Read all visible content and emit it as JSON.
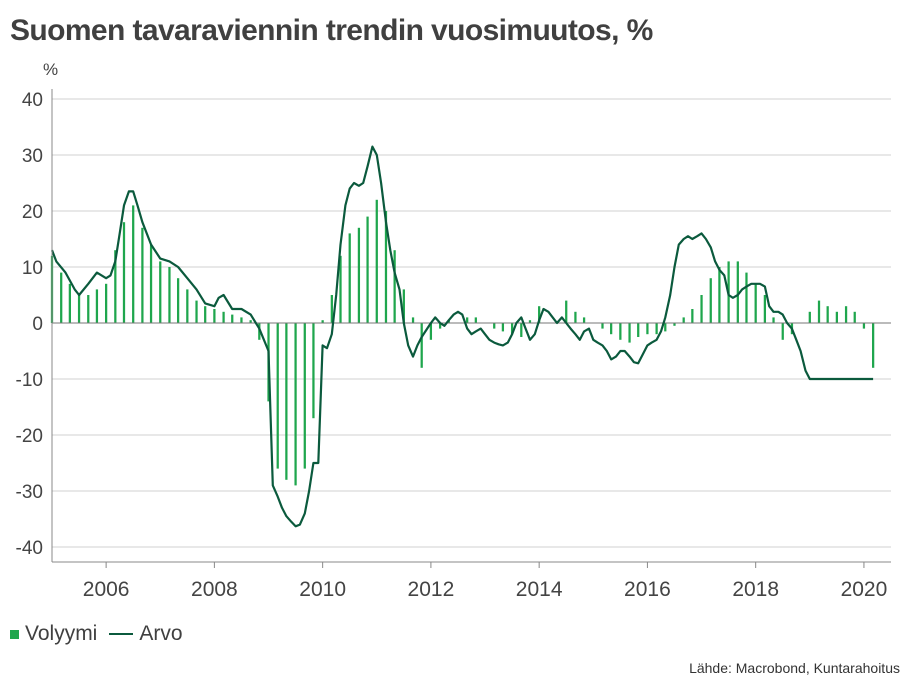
{
  "title": "Suomen tavaraviennin trendin vuosimuutos, %",
  "unit_label": "%",
  "source": "Lähde: Macrobond, Kuntarahoitus",
  "colors": {
    "bars": "#1fa64d",
    "line": "#0b5a3d",
    "grid": "#d0d0d0",
    "axis": "#888888"
  },
  "chart_data": {
    "type": "bar",
    "title": "Suomen tavaraviennin trendin vuosimuutos, %",
    "ylabel": "%",
    "ylim": [
      -40,
      40
    ],
    "yticks": [
      40,
      30,
      20,
      10,
      0,
      -10,
      -20,
      -30,
      -40
    ],
    "xlim": [
      2005.0,
      2020.5
    ],
    "xticks": [
      2006,
      2008,
      2010,
      2012,
      2014,
      2016,
      2018,
      2020
    ],
    "grid": true,
    "legend_position": "bottom-left",
    "series": [
      {
        "name": "Volyymi",
        "kind": "bar",
        "points": [
          [
            2005.0,
            12
          ],
          [
            2005.17,
            9
          ],
          [
            2005.33,
            7
          ],
          [
            2005.5,
            5
          ],
          [
            2005.67,
            5
          ],
          [
            2005.83,
            6
          ],
          [
            2006.0,
            7
          ],
          [
            2006.17,
            13
          ],
          [
            2006.33,
            18
          ],
          [
            2006.5,
            21
          ],
          [
            2006.67,
            17
          ],
          [
            2006.83,
            14
          ],
          [
            2007.0,
            11
          ],
          [
            2007.17,
            10
          ],
          [
            2007.33,
            8
          ],
          [
            2007.5,
            6
          ],
          [
            2007.67,
            4
          ],
          [
            2007.83,
            3
          ],
          [
            2008.0,
            2.5
          ],
          [
            2008.17,
            2
          ],
          [
            2008.33,
            1.5
          ],
          [
            2008.5,
            1
          ],
          [
            2008.67,
            0.5
          ],
          [
            2008.83,
            -3
          ],
          [
            2009.0,
            -14
          ],
          [
            2009.17,
            -26
          ],
          [
            2009.33,
            -28
          ],
          [
            2009.5,
            -29
          ],
          [
            2009.67,
            -26
          ],
          [
            2009.83,
            -17
          ],
          [
            2010.0,
            0.5
          ],
          [
            2010.17,
            5
          ],
          [
            2010.33,
            12
          ],
          [
            2010.5,
            16
          ],
          [
            2010.67,
            17
          ],
          [
            2010.83,
            19
          ],
          [
            2011.0,
            22
          ],
          [
            2011.17,
            20
          ],
          [
            2011.33,
            13
          ],
          [
            2011.5,
            6
          ],
          [
            2011.67,
            1
          ],
          [
            2011.83,
            -8
          ],
          [
            2012.0,
            -3
          ],
          [
            2012.17,
            -1
          ],
          [
            2012.33,
            0.5
          ],
          [
            2012.5,
            0
          ],
          [
            2012.67,
            1
          ],
          [
            2012.83,
            1
          ],
          [
            2013.0,
            0
          ],
          [
            2013.17,
            -1
          ],
          [
            2013.33,
            -1.5
          ],
          [
            2013.5,
            -2
          ],
          [
            2013.67,
            -2.5
          ],
          [
            2013.83,
            0.5
          ],
          [
            2014.0,
            3
          ],
          [
            2014.17,
            0
          ],
          [
            2014.33,
            0
          ],
          [
            2014.5,
            4
          ],
          [
            2014.67,
            2
          ],
          [
            2014.83,
            1
          ],
          [
            2015.0,
            0
          ],
          [
            2015.17,
            -1
          ],
          [
            2015.33,
            -2
          ],
          [
            2015.5,
            -3
          ],
          [
            2015.67,
            -3.5
          ],
          [
            2015.83,
            -2.5
          ],
          [
            2016.0,
            -2
          ],
          [
            2016.17,
            -2
          ],
          [
            2016.33,
            -1.5
          ],
          [
            2016.5,
            -0.5
          ],
          [
            2016.67,
            1
          ],
          [
            2016.83,
            2.5
          ],
          [
            2017.0,
            5
          ],
          [
            2017.17,
            8
          ],
          [
            2017.33,
            10
          ],
          [
            2017.5,
            11
          ],
          [
            2017.67,
            11
          ],
          [
            2017.83,
            9
          ],
          [
            2018.0,
            7
          ],
          [
            2018.17,
            5
          ],
          [
            2018.33,
            1
          ],
          [
            2018.5,
            -3
          ],
          [
            2018.67,
            -2
          ],
          [
            2018.83,
            0
          ],
          [
            2019.0,
            2
          ],
          [
            2019.17,
            4
          ],
          [
            2019.33,
            3
          ],
          [
            2019.5,
            2
          ],
          [
            2019.67,
            3
          ],
          [
            2019.83,
            2
          ],
          [
            2020.0,
            -1
          ],
          [
            2020.17,
            -8
          ]
        ]
      },
      {
        "name": "Arvo",
        "kind": "line",
        "points": [
          [
            2005.0,
            13
          ],
          [
            2005.08,
            11
          ],
          [
            2005.25,
            9
          ],
          [
            2005.42,
            6
          ],
          [
            2005.5,
            5
          ],
          [
            2005.67,
            7
          ],
          [
            2005.83,
            9
          ],
          [
            2006.0,
            8
          ],
          [
            2006.08,
            8.5
          ],
          [
            2006.17,
            11
          ],
          [
            2006.25,
            16
          ],
          [
            2006.33,
            21
          ],
          [
            2006.42,
            23.5
          ],
          [
            2006.5,
            23.5
          ],
          [
            2006.58,
            21
          ],
          [
            2006.67,
            18
          ],
          [
            2006.83,
            14
          ],
          [
            2007.0,
            11.5
          ],
          [
            2007.17,
            11
          ],
          [
            2007.33,
            10
          ],
          [
            2007.5,
            8
          ],
          [
            2007.67,
            6
          ],
          [
            2007.83,
            3.5
          ],
          [
            2008.0,
            3
          ],
          [
            2008.08,
            4.5
          ],
          [
            2008.17,
            5
          ],
          [
            2008.33,
            2.5
          ],
          [
            2008.5,
            2.5
          ],
          [
            2008.67,
            1.5
          ],
          [
            2008.83,
            -1
          ],
          [
            2009.0,
            -5
          ],
          [
            2009.08,
            -29
          ],
          [
            2009.17,
            -31
          ],
          [
            2009.25,
            -33
          ],
          [
            2009.33,
            -34.5
          ],
          [
            2009.42,
            -35.5
          ],
          [
            2009.5,
            -36.3
          ],
          [
            2009.58,
            -36
          ],
          [
            2009.67,
            -34
          ],
          [
            2009.75,
            -30
          ],
          [
            2009.83,
            -25
          ],
          [
            2009.92,
            -25
          ],
          [
            2010.0,
            -4
          ],
          [
            2010.08,
            -4.5
          ],
          [
            2010.17,
            -2
          ],
          [
            2010.25,
            5
          ],
          [
            2010.33,
            14
          ],
          [
            2010.42,
            21
          ],
          [
            2010.5,
            24
          ],
          [
            2010.58,
            25
          ],
          [
            2010.67,
            24.5
          ],
          [
            2010.75,
            25
          ],
          [
            2010.83,
            28
          ],
          [
            2010.92,
            31.5
          ],
          [
            2011.0,
            30
          ],
          [
            2011.08,
            25
          ],
          [
            2011.17,
            18
          ],
          [
            2011.25,
            13
          ],
          [
            2011.33,
            9
          ],
          [
            2011.42,
            6
          ],
          [
            2011.5,
            0
          ],
          [
            2011.58,
            -4
          ],
          [
            2011.67,
            -6
          ],
          [
            2011.75,
            -4
          ],
          [
            2011.83,
            -2.5
          ],
          [
            2012.0,
            0
          ],
          [
            2012.08,
            1
          ],
          [
            2012.17,
            0
          ],
          [
            2012.25,
            -0.5
          ],
          [
            2012.33,
            0.5
          ],
          [
            2012.42,
            1.5
          ],
          [
            2012.5,
            2
          ],
          [
            2012.58,
            1.5
          ],
          [
            2012.67,
            -1
          ],
          [
            2012.75,
            -2
          ],
          [
            2012.83,
            -1.5
          ],
          [
            2012.92,
            -1
          ],
          [
            2013.0,
            -2
          ],
          [
            2013.08,
            -3
          ],
          [
            2013.17,
            -3.5
          ],
          [
            2013.25,
            -3.8
          ],
          [
            2013.33,
            -4
          ],
          [
            2013.42,
            -3.5
          ],
          [
            2013.5,
            -2
          ],
          [
            2013.58,
            0
          ],
          [
            2013.67,
            1
          ],
          [
            2013.75,
            -1
          ],
          [
            2013.83,
            -3
          ],
          [
            2013.92,
            -2
          ],
          [
            2014.0,
            0.5
          ],
          [
            2014.08,
            2.5
          ],
          [
            2014.17,
            2
          ],
          [
            2014.25,
            1
          ],
          [
            2014.33,
            0
          ],
          [
            2014.42,
            1
          ],
          [
            2014.5,
            0
          ],
          [
            2014.58,
            -1
          ],
          [
            2014.67,
            -2
          ],
          [
            2014.75,
            -3
          ],
          [
            2014.83,
            -1.5
          ],
          [
            2014.92,
            -1
          ],
          [
            2015.0,
            -3
          ],
          [
            2015.08,
            -3.5
          ],
          [
            2015.17,
            -4
          ],
          [
            2015.25,
            -5
          ],
          [
            2015.33,
            -6.5
          ],
          [
            2015.42,
            -6
          ],
          [
            2015.5,
            -5
          ],
          [
            2015.58,
            -5
          ],
          [
            2015.67,
            -6
          ],
          [
            2015.75,
            -7
          ],
          [
            2015.83,
            -7.2
          ],
          [
            2015.92,
            -5.5
          ],
          [
            2016.0,
            -4
          ],
          [
            2016.08,
            -3.5
          ],
          [
            2016.17,
            -3
          ],
          [
            2016.25,
            -1.5
          ],
          [
            2016.33,
            1
          ],
          [
            2016.42,
            5
          ],
          [
            2016.5,
            10
          ],
          [
            2016.58,
            14
          ],
          [
            2016.67,
            15
          ],
          [
            2016.75,
            15.5
          ],
          [
            2016.83,
            15
          ],
          [
            2016.92,
            15.5
          ],
          [
            2017.0,
            16
          ],
          [
            2017.08,
            15
          ],
          [
            2017.17,
            13.5
          ],
          [
            2017.25,
            11
          ],
          [
            2017.33,
            9.5
          ],
          [
            2017.42,
            8.5
          ],
          [
            2017.5,
            5
          ],
          [
            2017.58,
            4.5
          ],
          [
            2017.67,
            5
          ],
          [
            2017.75,
            6
          ],
          [
            2017.83,
            6.5
          ],
          [
            2017.92,
            7
          ],
          [
            2018.0,
            7
          ],
          [
            2018.08,
            7
          ],
          [
            2018.17,
            6.5
          ],
          [
            2018.25,
            3
          ],
          [
            2018.33,
            2
          ],
          [
            2018.42,
            2
          ],
          [
            2018.5,
            1.5
          ],
          [
            2018.58,
            0
          ],
          [
            2018.67,
            -1
          ],
          [
            2018.75,
            -3
          ],
          [
            2018.83,
            -5
          ],
          [
            2018.92,
            -8.5
          ],
          [
            2019.0,
            -10
          ],
          [
            2019.08,
            -10
          ],
          [
            2019.17,
            -10
          ],
          [
            2019.25,
            -10
          ],
          [
            2019.33,
            -10
          ],
          [
            2019.42,
            -10
          ],
          [
            2019.5,
            -10
          ],
          [
            2019.58,
            -10
          ],
          [
            2019.67,
            -10
          ],
          [
            2019.75,
            -10
          ],
          [
            2019.83,
            -10
          ],
          [
            2019.92,
            -10
          ],
          [
            2020.0,
            -10
          ],
          [
            2020.08,
            -10
          ],
          [
            2020.17,
            -10
          ]
        ]
      }
    ]
  },
  "legend": [
    {
      "label": "Volyymi"
    },
    {
      "label": "Arvo"
    }
  ]
}
